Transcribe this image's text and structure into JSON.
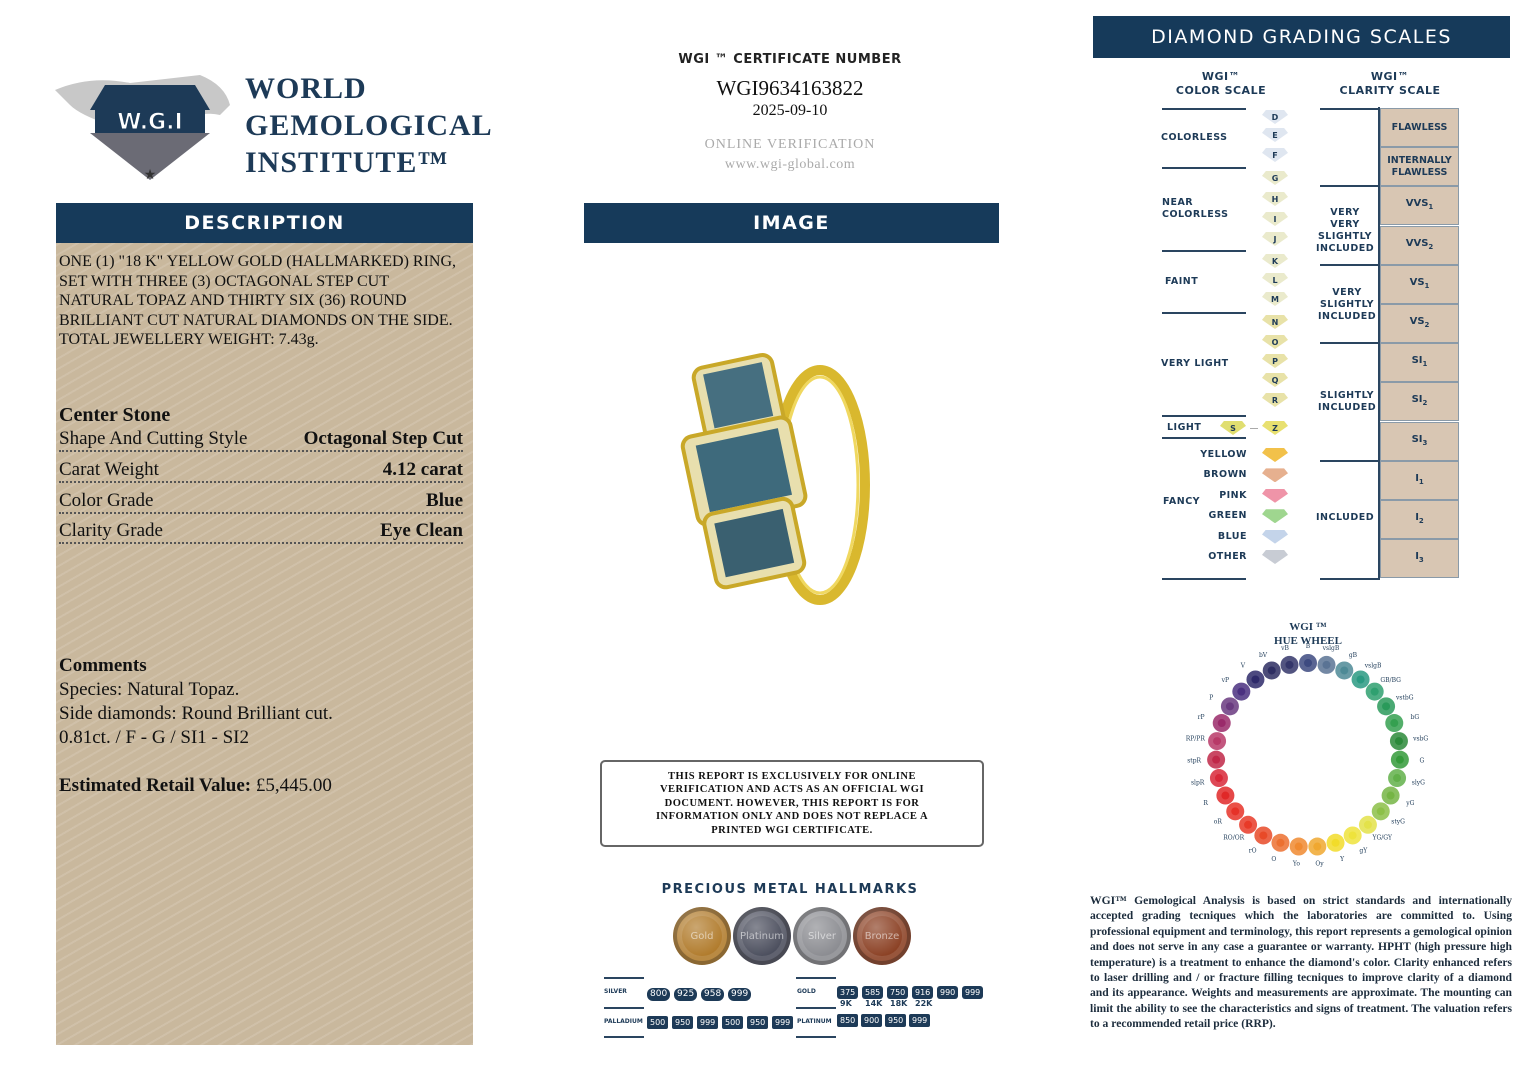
{
  "logo": {
    "emblem_text": "W.G.I",
    "ring_text": "WORLD GEMOLOGICAL INSTITUTE",
    "name_lines": [
      "WORLD",
      "GEMOLOGICAL",
      "INSTITUTE™"
    ]
  },
  "description": {
    "header": "DESCRIPTION",
    "text": "ONE (1) \"18 K\" YELLOW GOLD (HALLMARKED) RING, SET WITH THREE (3) OCTAGONAL STEP CUT NATURAL TOPAZ AND THIRTY SIX (36) ROUND BRILLIANT CUT NATURAL DIAMONDS ON THE SIDE. TOTAL JEWELLERY WEIGHT: 7.43g.",
    "center_stone_title": "Center Stone",
    "rows": [
      {
        "label": "Shape And Cutting Style",
        "value": "Octagonal Step Cut"
      },
      {
        "label": "Carat Weight",
        "value": "4.12 carat"
      },
      {
        "label": "Color Grade",
        "value": "Blue"
      },
      {
        "label": "Clarity Grade",
        "value": "Eye Clean"
      }
    ],
    "comments_title": "Comments",
    "comments": [
      "Species: Natural Topaz.",
      "Side diamonds: Round Brilliant cut.",
      "0.81ct. / F - G / SI1 - SI2"
    ],
    "retail_label": "Estimated Retail Value:",
    "retail_value": "£5,445.00"
  },
  "certificate": {
    "label": "WGI ™ CERTIFICATE NUMBER",
    "number": "WGI9634163822",
    "date": "2025-09-10",
    "online": "ONLINE VERIFICATION",
    "url": "www.wgi-global.com"
  },
  "image": {
    "header": "IMAGE"
  },
  "disclaimer": "THIS REPORT IS EXCLUSIVELY FOR ONLINE VERIFICATION AND ACTS AS AN OFFICIAL WGI DOCUMENT. HOWEVER, THIS REPORT IS FOR INFORMATION ONLY AND DOES NOT REPLACE A PRINTED WGI CERTIFICATE.",
  "hallmarks": {
    "title": "PRECIOUS METAL HALLMARKS",
    "medals": [
      {
        "label": "Gold",
        "color": "#b07a2a"
      },
      {
        "label": "Platinum",
        "color": "#4a4d5c"
      },
      {
        "label": "Silver",
        "color": "#8a8b90"
      },
      {
        "label": "Bronze",
        "color": "#8a3f22"
      }
    ],
    "silver_label": "SILVER",
    "silver": [
      "800",
      "925",
      "958",
      "999"
    ],
    "palladium_label": "PALLADIUM",
    "palladium": [
      "500",
      "950",
      "999",
      "500",
      "950",
      "999"
    ],
    "gold_label": "GOLD",
    "gold": [
      "375",
      "585",
      "750",
      "916",
      "990",
      "999"
    ],
    "gold_karats": [
      "9K",
      "14K",
      "18K",
      "22K"
    ],
    "platinum_label": "PLATINUM",
    "platinum": [
      "850",
      "900",
      "950",
      "999"
    ]
  },
  "grading": {
    "header": "DIAMOND GRADING  SCALES",
    "color_scale_title": [
      "WGI™",
      "COLOR SCALE"
    ],
    "color_groups": [
      "COLORLESS",
      "NEAR COLORLESS",
      "FAINT",
      "VERY LIGHT",
      "LIGHT",
      "FANCY"
    ],
    "color_grades": [
      "D",
      "E",
      "F",
      "G",
      "H",
      "I",
      "J",
      "K",
      "L",
      "M",
      "N",
      "O",
      "P",
      "Q",
      "R",
      "Z"
    ],
    "light_start": "S",
    "fancy": [
      {
        "label": "YELLOW",
        "color": "#f2c14a"
      },
      {
        "label": "BROWN",
        "color": "#e6b08f"
      },
      {
        "label": "PINK",
        "color": "#ef94a8"
      },
      {
        "label": "GREEN",
        "color": "#9fd68f"
      },
      {
        "label": "BLUE",
        "color": "#c4d4ea"
      },
      {
        "label": "OTHER",
        "color": "#c8ccd4"
      }
    ],
    "clarity_scale_title": [
      "WGI™",
      "CLARITY SCALE"
    ],
    "clarity_grades": [
      "FLAWLESS",
      "INTERNALLY FLAWLESS",
      "VVS1",
      "VVS2",
      "VS1",
      "VS2",
      "SI1",
      "SI2",
      "SI3",
      "I1",
      "I2",
      "I3"
    ],
    "clarity_groups": [
      "VERY VERY SLIGHTLY INCLUDED",
      "VERY SLIGHTLY INCLUDED",
      "SLIGHTLY INCLUDED",
      "INCLUDED"
    ]
  },
  "hue_wheel": {
    "title": [
      "WGI ™",
      "HUE WHEEL"
    ],
    "hues": [
      {
        "l": "B",
        "c": "#3d4a80"
      },
      {
        "l": "vslgB",
        "c": "#5a7394"
      },
      {
        "l": "gB",
        "c": "#4d8a96"
      },
      {
        "l": "vslgB",
        "c": "#2a9a82"
      },
      {
        "l": "GB/BG",
        "c": "#2fa070"
      },
      {
        "l": "vstbG",
        "c": "#2a9a5a"
      },
      {
        "l": "bG",
        "c": "#35a050"
      },
      {
        "l": "vsbG",
        "c": "#2b8a3a"
      },
      {
        "l": "G",
        "c": "#349a3a"
      },
      {
        "l": "slyG",
        "c": "#62b04a"
      },
      {
        "l": "yG",
        "c": "#75b545"
      },
      {
        "l": "styG",
        "c": "#8cc048"
      },
      {
        "l": "YG/GY",
        "c": "#e3e24a"
      },
      {
        "l": "gY",
        "c": "#eee33c"
      },
      {
        "l": "Y",
        "c": "#f2dc2a"
      },
      {
        "l": "Oy",
        "c": "#f0a830"
      },
      {
        "l": "Yo",
        "c": "#f08a30"
      },
      {
        "l": "O",
        "c": "#ec7030"
      },
      {
        "l": "rO",
        "c": "#e84a28"
      },
      {
        "l": "RO/OR",
        "c": "#e83a28"
      },
      {
        "l": "oR",
        "c": "#e63228"
      },
      {
        "l": "R",
        "c": "#e02828"
      },
      {
        "l": "slpR",
        "c": "#d82838"
      },
      {
        "l": "stpR",
        "c": "#c02848"
      },
      {
        "l": "RP/PR",
        "c": "#b83a68"
      },
      {
        "l": "rP",
        "c": "#9a2a6a"
      },
      {
        "l": "P",
        "c": "#6a3a80"
      },
      {
        "l": "vP",
        "c": "#4a3080"
      },
      {
        "l": "V",
        "c": "#2e2a6a"
      },
      {
        "l": "bV",
        "c": "#2e2e62"
      },
      {
        "l": "vB",
        "c": "#34366a"
      }
    ]
  },
  "legal": "WGI™ Gemological Analysis is based on strict standards and internationally accepted grading tecniques which the laboratories are committed to. Using professional equipment and terminology, this report represents a gemological opinion and does not serve in any case a guarantee or warranty. HPHT (high pressure high temperature) is a treatment to enhance the diamond's color. Clarity enhanced refers to laser drilling and / or fracture filling tecniques to improve clarity of a diamond and its appearance. Weights and measurements are approximate. The mounting can limit the ability to see the characteristics and signs of treatment. The valuation refers to a recommended retail price (RRP).",
  "colors": {
    "navy": "#163a5a",
    "tan": "#c9b89d",
    "clarity_cell": "#d8c6b3"
  }
}
